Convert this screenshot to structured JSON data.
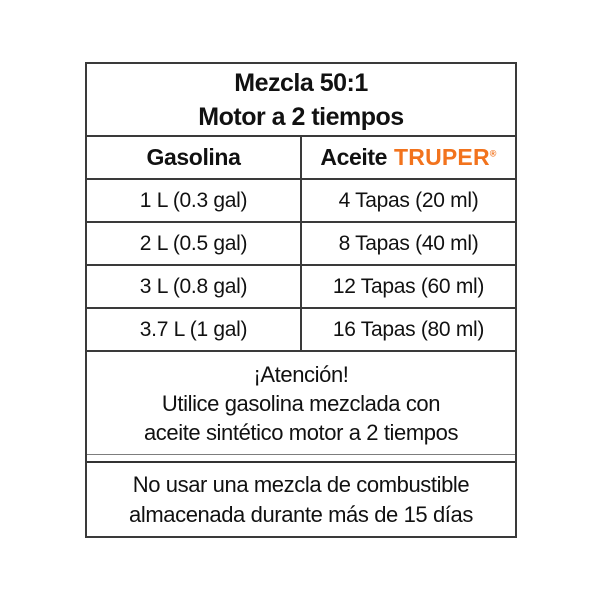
{
  "table": {
    "title_line1": "Mezcla 50:1",
    "title_line2": "Motor a 2 tiempos",
    "columns": {
      "gasolina": "Gasolina",
      "aceite_prefix": "Aceite",
      "brand": "TRUPER",
      "registered": "®"
    },
    "rows": [
      {
        "gasolina": "1 L (0.3 gal)",
        "aceite": "4 Tapas (20 ml)"
      },
      {
        "gasolina": "2 L (0.5 gal)",
        "aceite": "8 Tapas (40 ml)"
      },
      {
        "gasolina": "3 L (0.8 gal)",
        "aceite": "12 Tapas (60 ml)"
      },
      {
        "gasolina": "3.7 L (1 gal)",
        "aceite": "16 Tapas (80 ml)"
      }
    ],
    "attention": {
      "heading": "¡Atención!",
      "line1": "Utilice gasolina mezclada con",
      "line2": "aceite sintético motor a 2 tiempos"
    },
    "note": {
      "line1": "No usar una mezcla de combustible",
      "line2": "almacenada durante más de 15 días"
    },
    "colors": {
      "brand_orange": "#F2731D",
      "border": "#3a3a3a",
      "text": "#111111"
    }
  },
  "chart_data": {
    "type": "table",
    "title": "Mezcla 50:1 Motor a 2 tiempos",
    "columns": [
      "Gasolina",
      "Aceite TRUPER®"
    ],
    "rows": [
      [
        "1 L (0.3 gal)",
        "4 Tapas (20 ml)"
      ],
      [
        "2 L (0.5 gal)",
        "8 Tapas (40 ml)"
      ],
      [
        "3 L (0.8 gal)",
        "12 Tapas (60 ml)"
      ],
      [
        "3.7 L (1 gal)",
        "16 Tapas (80 ml)"
      ]
    ],
    "annotations": [
      "¡Atención! Utilice gasolina mezclada con aceite sintético motor a 2 tiempos",
      "No usar una mezcla de combustible almacenada durante más de 15 días"
    ],
    "layout": {
      "grid": "on",
      "ratio": "50:1"
    }
  }
}
